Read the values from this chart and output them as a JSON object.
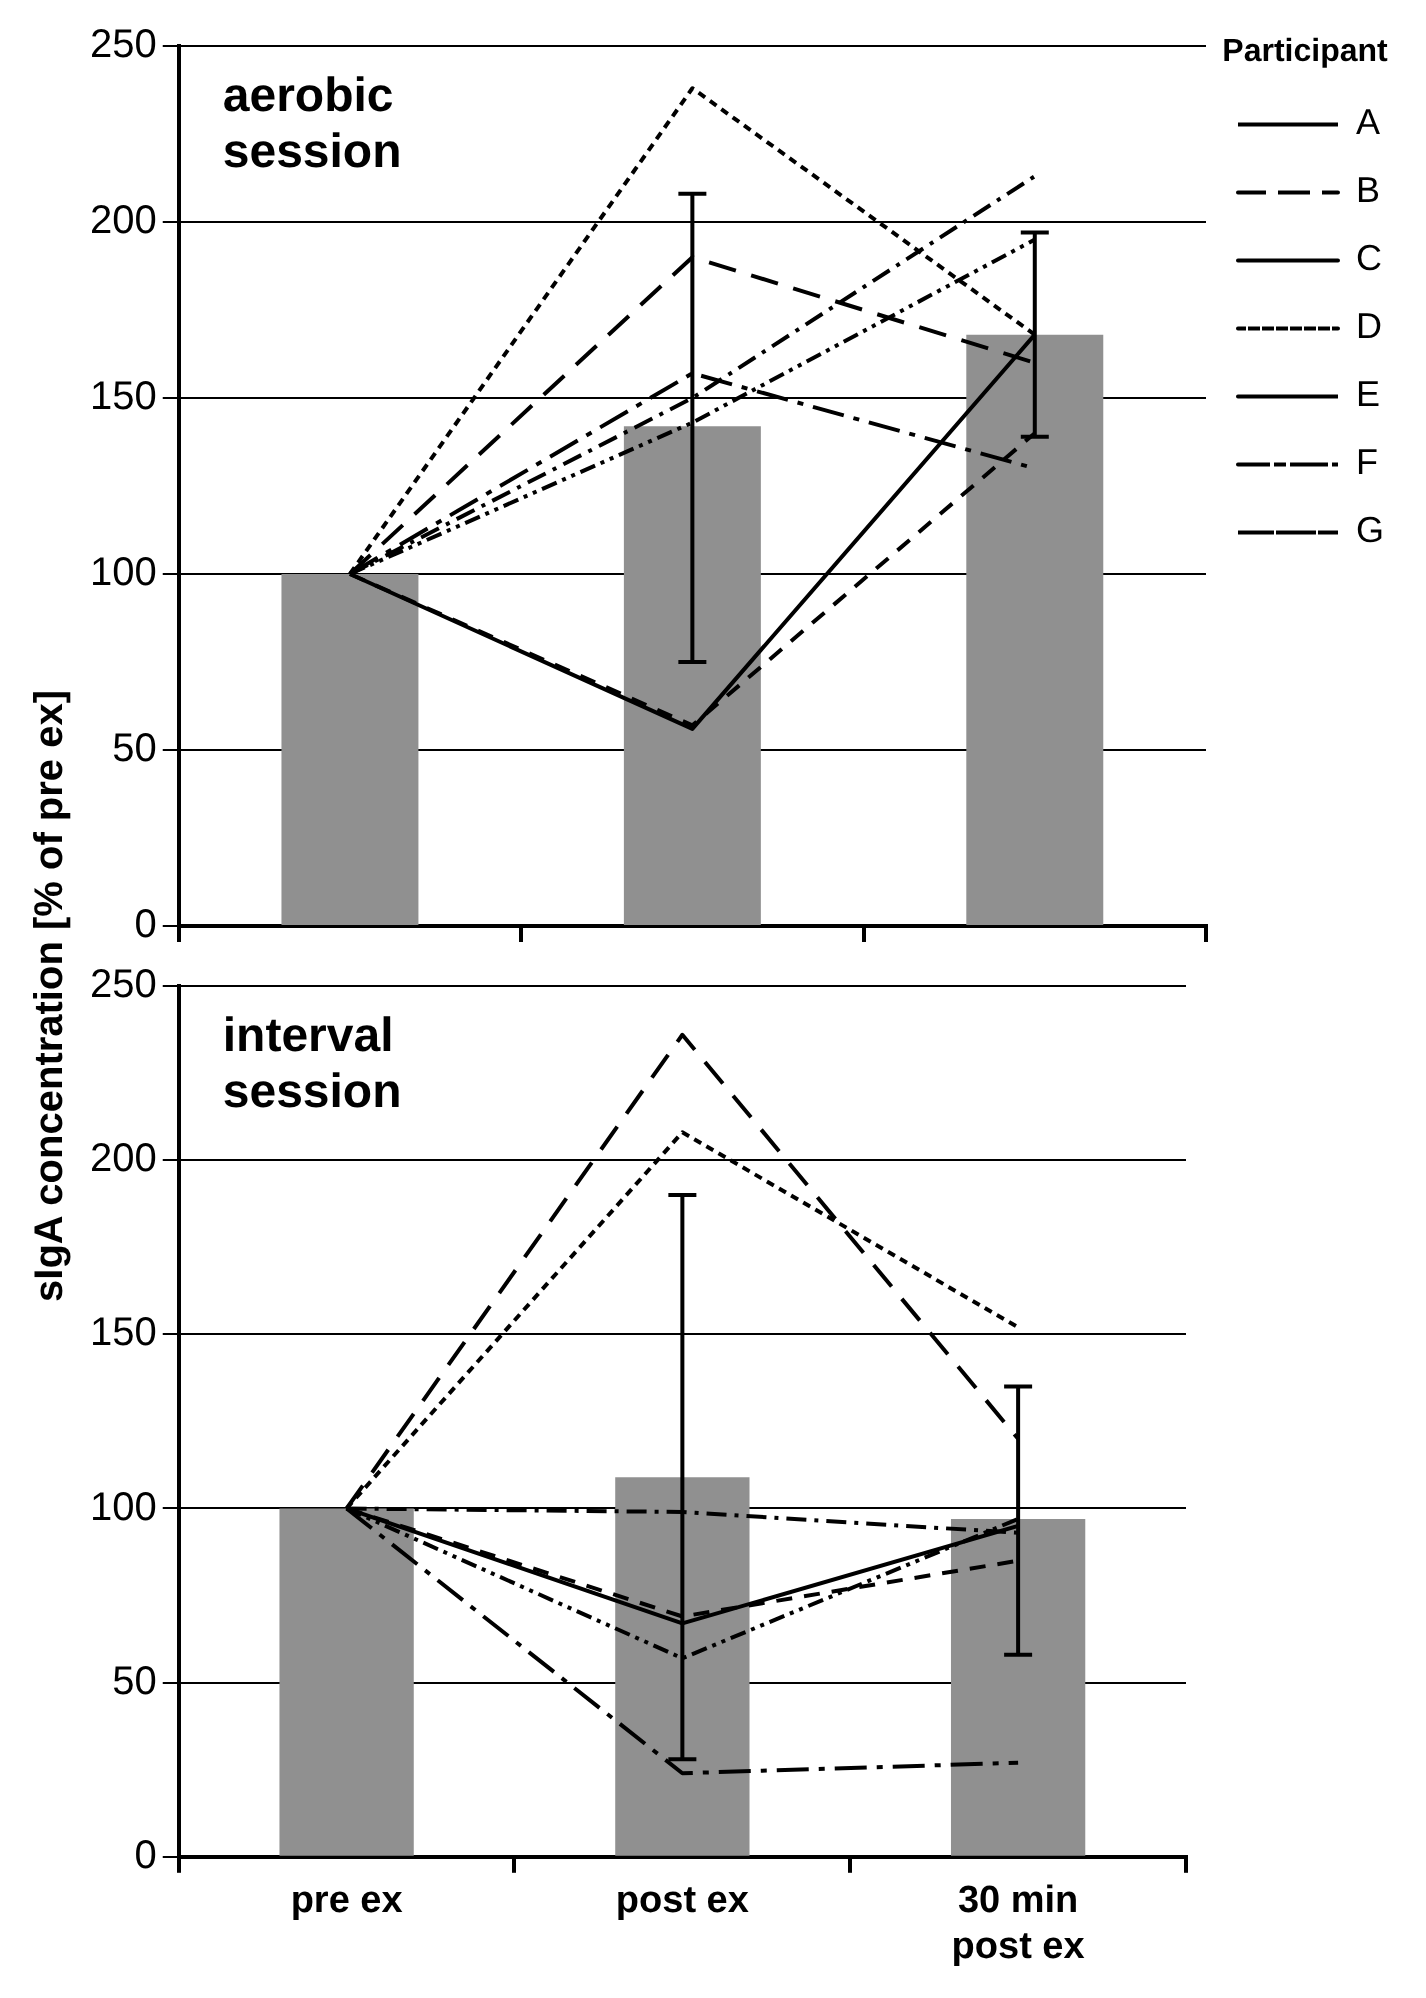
{
  "chart_data": [
    {
      "type": "bar",
      "annotations": [
        "aerobic session"
      ],
      "ylabel": "sIgA concentration [% of pre ex]",
      "legend_title": "Participant",
      "legend": "right",
      "categories": [
        null,
        null,
        null
      ],
      "ylim": [
        0,
        250
      ],
      "yticks": [
        0,
        50,
        100,
        150,
        200,
        250
      ],
      "grid": "y",
      "tick_labels": "y",
      "marker": "none",
      "series": [
        {
          "color": "#909090",
          "values": [
            100,
            142,
            168
          ],
          "errors": [
            null,
            [
              75,
              208
            ],
            [
              139,
              197
            ]
          ]
        },
        {
          "type": "line",
          "name": "A",
          "color": "#000000",
          "line_style": "dashdot",
          "values": [
            100,
            150,
            213
          ]
        },
        {
          "type": "line",
          "name": "B",
          "color": "#000000",
          "line_style": "longdash",
          "values": [
            100,
            190,
            160
          ]
        },
        {
          "type": "line",
          "name": "C",
          "color": "#000000",
          "line_style": "solid",
          "values": [
            100,
            56,
            168
          ]
        },
        {
          "type": "line",
          "name": "D",
          "color": "#000000",
          "line_style": "dotted",
          "values": [
            100,
            238,
            168
          ]
        },
        {
          "type": "line",
          "name": "E",
          "color": "#000000",
          "line_style": "dashed",
          "values": [
            100,
            57,
            140
          ]
        },
        {
          "type": "line",
          "name": "F",
          "color": "#000000",
          "line_style": "longdashdot",
          "values": [
            100,
            157,
            130
          ]
        },
        {
          "type": "line",
          "name": "G",
          "color": "#000000",
          "line_style": "dashdotdot",
          "values": [
            100,
            143,
            195
          ]
        }
      ]
    },
    {
      "type": "bar",
      "annotations": [
        "interval session"
      ],
      "categories": [
        "pre ex",
        "post ex",
        "30 min\npost ex"
      ],
      "ylim": [
        0,
        250
      ],
      "yticks": [
        0,
        50,
        100,
        150,
        200,
        250
      ],
      "grid": "y",
      "marker": "none",
      "series": [
        {
          "color": "#909090",
          "values": [
            100,
            109,
            97
          ],
          "errors": [
            null,
            [
              28,
              190
            ],
            [
              58,
              135
            ]
          ]
        },
        {
          "type": "line",
          "color": "#000000",
          "line_style": "dashdot",
          "values": [
            100,
            99,
            93
          ]
        },
        {
          "type": "line",
          "color": "#000000",
          "line_style": "longdash",
          "values": [
            100,
            236,
            120
          ]
        },
        {
          "type": "line",
          "color": "#000000",
          "line_style": "solid",
          "values": [
            100,
            67,
            95
          ]
        },
        {
          "type": "line",
          "color": "#000000",
          "line_style": "dotted",
          "values": [
            100,
            208,
            152
          ]
        },
        {
          "type": "line",
          "color": "#000000",
          "line_style": "dashed",
          "values": [
            100,
            69,
            85
          ]
        },
        {
          "type": "line",
          "color": "#000000",
          "line_style": "longdashdot",
          "values": [
            100,
            24,
            27
          ]
        },
        {
          "type": "line",
          "color": "#000000",
          "line_style": "dashdotdot",
          "values": [
            100,
            57,
            97
          ]
        }
      ]
    }
  ]
}
